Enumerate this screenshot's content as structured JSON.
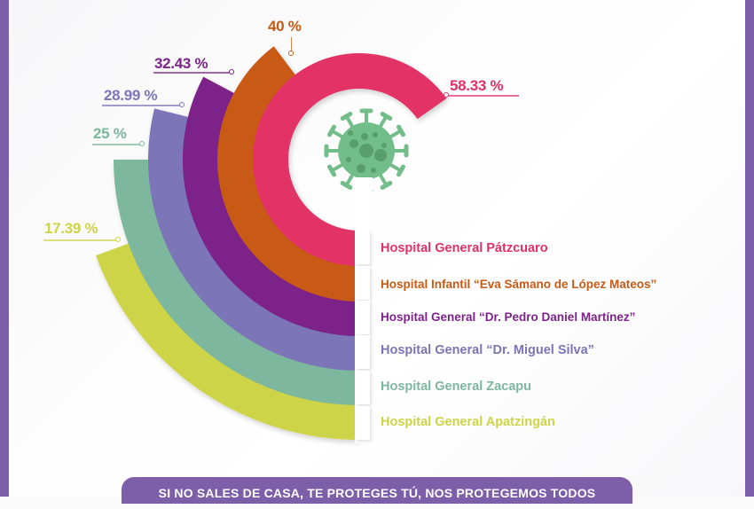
{
  "colors": {
    "frame": "#7c5fa8",
    "pink": "#e33066",
    "orange": "#c85a17",
    "purple": "#7b2388",
    "lavender": "#7b76b8",
    "teal": "#7db79d",
    "lime": "#cdd446",
    "virus": "#72bd8a"
  },
  "chart_data": {
    "type": "radial-bar",
    "title": "",
    "categories": [
      "Hospital General Pátzcuaro",
      "Hospital Infantil “Eva Sámano de López Mateos”",
      "Hospital General “Dr. Pedro Daniel Martínez”",
      "Hospital General “Dr. Miguel Silva”",
      "Hospital General Zacapu",
      "Hospital General Apatzingán"
    ],
    "values": [
      58.33,
      40,
      32.43,
      28.99,
      25,
      17.39
    ],
    "value_labels": [
      "58.33 %",
      "40 %",
      "32.43 %",
      "28.99 %",
      "25 %",
      "17.39 %"
    ],
    "unit": "%",
    "colors": [
      "#e33066",
      "#c85a17",
      "#7b2388",
      "#7b76b8",
      "#7db79d",
      "#cdd446"
    ],
    "legend_position": "right-of-bars"
  },
  "labels": {
    "pink": "58.33 %",
    "orange": "40 %",
    "purple": "32.43 %",
    "lavender": "28.99 %",
    "teal": "25 %",
    "lime": "17.39 %"
  },
  "legend": [
    {
      "label": "Hospital General Pátzcuaro"
    },
    {
      "label": "Hospital Infantil “Eva Sámano de López Mateos”"
    },
    {
      "label": "Hospital General “Dr. Pedro Daniel Martínez”"
    },
    {
      "label": "Hospital General “Dr. Miguel Silva”"
    },
    {
      "label": "Hospital General Zacapu"
    },
    {
      "label": "Hospital General Apatzingán"
    }
  ],
  "banner": {
    "text": "SI NO SALES DE CASA, TE PROTEGES TÚ, NOS PROTEGEMOS TODOS"
  },
  "icons": {
    "center": "virus-icon"
  }
}
